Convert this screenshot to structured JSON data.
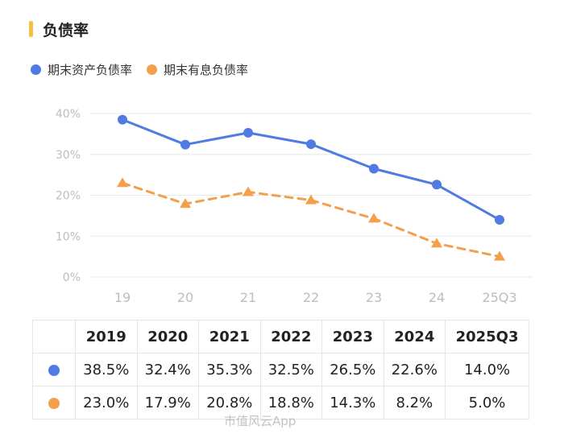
{
  "header": {
    "title": "负债率",
    "accent_color": "#F5C043"
  },
  "colors": {
    "series1": "#4F7BE3",
    "series2": "#F2A04B",
    "grid": "#e8e8e8",
    "tick": "#bdbdbd"
  },
  "chart_data": {
    "type": "line",
    "title": "负债率",
    "categories": [
      "19",
      "20",
      "21",
      "22",
      "23",
      "24",
      "25Q3"
    ],
    "ylim": [
      0,
      40
    ],
    "yticks": [
      "0%",
      "10%",
      "20%",
      "30%",
      "40%"
    ],
    "ytick_values": [
      0,
      10,
      20,
      30,
      40
    ],
    "series": [
      {
        "name": "期末资产负债率",
        "style": "solid",
        "marker": "circle",
        "values": [
          38.5,
          32.4,
          35.3,
          32.5,
          26.5,
          22.6,
          14.0
        ]
      },
      {
        "name": "期末有息负债率",
        "style": "dashed",
        "marker": "triangle",
        "values": [
          23.0,
          17.9,
          20.8,
          18.8,
          14.3,
          8.2,
          5.0
        ]
      }
    ],
    "legend_position": "top-left",
    "grid": true
  },
  "table": {
    "headers": [
      "",
      "2019",
      "2020",
      "2021",
      "2022",
      "2023",
      "2024",
      "2025Q3"
    ],
    "rows": [
      {
        "cells": [
          "38.5%",
          "32.4%",
          "35.3%",
          "32.5%",
          "26.5%",
          "22.6%",
          "14.0%"
        ]
      },
      {
        "cells": [
          "23.0%",
          "17.9%",
          "20.8%",
          "18.8%",
          "14.3%",
          "8.2%",
          "5.0%"
        ]
      }
    ]
  },
  "watermark": "市值风云App"
}
